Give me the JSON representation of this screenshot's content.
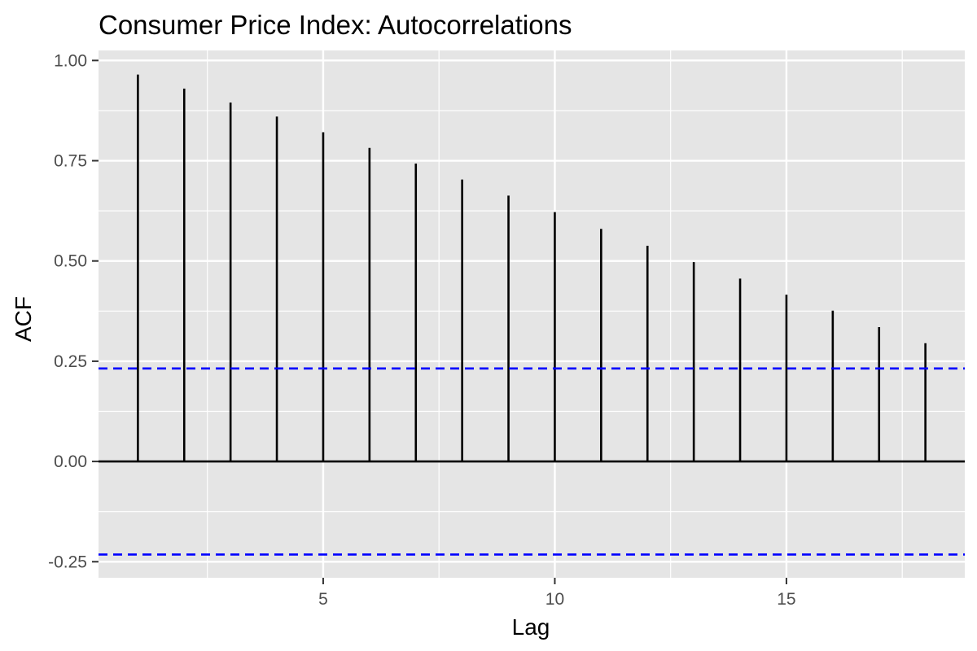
{
  "chart_data": {
    "type": "bar",
    "title": "Consumer Price Index: Autocorrelations",
    "xlabel": "Lag",
    "ylabel": "ACF",
    "x": [
      1,
      2,
      3,
      4,
      5,
      6,
      7,
      8,
      9,
      10,
      11,
      12,
      13,
      14,
      15,
      16,
      17,
      18
    ],
    "values": [
      0.965,
      0.93,
      0.895,
      0.86,
      0.821,
      0.782,
      0.743,
      0.703,
      0.663,
      0.622,
      0.58,
      0.538,
      0.497,
      0.456,
      0.416,
      0.376,
      0.335,
      0.295
    ],
    "xlim": [
      0.15,
      18.85
    ],
    "ylim": [
      -0.29,
      1.025
    ],
    "x_ticks": [
      5,
      10,
      15
    ],
    "x_tick_labels": [
      "5",
      "10",
      "15"
    ],
    "y_ticks": [
      1.0,
      0.75,
      0.5,
      0.25,
      0.0,
      -0.25
    ],
    "y_tick_labels": [
      "1.00",
      "0.75",
      "0.50",
      "0.25",
      "0.00",
      "-0.25"
    ],
    "confidence_bounds": [
      0.232,
      -0.232
    ],
    "grid": true,
    "legend": "none",
    "colors": {
      "panel_background": "#e5e5e5",
      "grid": "#ffffff",
      "bars": "#000000",
      "zero_line": "#000000",
      "confidence_line": "#0000ff"
    }
  }
}
